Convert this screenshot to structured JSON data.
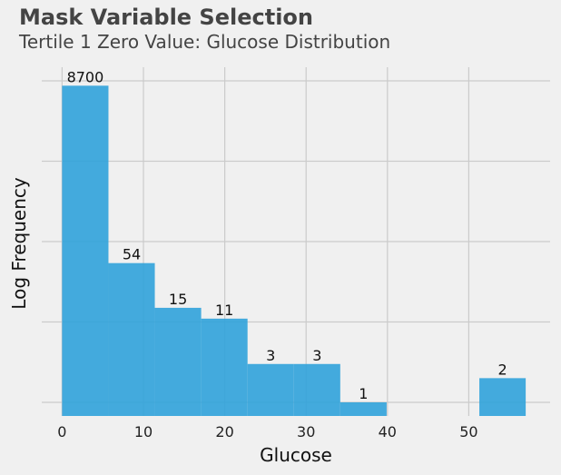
{
  "title": "Mask Variable Selection",
  "subtitle": "Tertile 1 Zero Value: Glucose Distribution",
  "chart_data": {
    "type": "bar",
    "xlabel": "Glucose",
    "ylabel": "Log Frequency",
    "y_scale": "log",
    "x_ticks": [
      0,
      10,
      20,
      30,
      40,
      50
    ],
    "xlim": [
      -2.5,
      60
    ],
    "bins": [
      {
        "x0": 0,
        "x1": 5.7,
        "count": 8700,
        "label": "8700"
      },
      {
        "x0": 5.7,
        "x1": 11.4,
        "count": 54,
        "label": "54"
      },
      {
        "x0": 11.4,
        "x1": 17.1,
        "count": 15,
        "label": "15"
      },
      {
        "x0": 17.1,
        "x1": 22.8,
        "count": 11,
        "label": "11"
      },
      {
        "x0": 22.8,
        "x1": 28.5,
        "count": 3,
        "label": "3"
      },
      {
        "x0": 28.5,
        "x1": 34.2,
        "count": 3,
        "label": "3"
      },
      {
        "x0": 34.2,
        "x1": 39.9,
        "count": 1,
        "label": "1"
      },
      {
        "x0": 39.9,
        "x1": 45.6,
        "count": 0,
        "label": ""
      },
      {
        "x0": 45.6,
        "x1": 51.3,
        "count": 0,
        "label": ""
      },
      {
        "x0": 51.3,
        "x1": 57.0,
        "count": 2,
        "label": "2"
      }
    ],
    "bar_color": "#30a2da",
    "grid": true
  }
}
